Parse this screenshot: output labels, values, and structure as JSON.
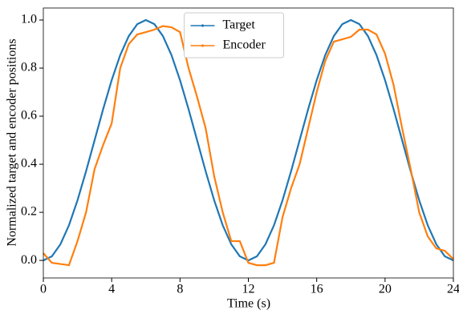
{
  "chart_data": {
    "type": "line",
    "xlabel": "Time (s)",
    "ylabel": "Normalized target and encoder positions",
    "x": [
      0,
      0.5,
      1,
      1.5,
      2,
      2.5,
      3,
      3.5,
      4,
      4.5,
      5,
      5.5,
      6,
      6.5,
      7,
      7.5,
      8,
      8.5,
      9,
      9.5,
      10,
      10.5,
      11,
      11.5,
      12,
      12.5,
      13,
      13.5,
      14,
      14.5,
      15,
      15.5,
      16,
      16.5,
      17,
      17.5,
      18,
      18.5,
      19,
      19.5,
      20,
      20.5,
      21,
      21.5,
      22,
      22.5,
      23,
      23.5,
      24
    ],
    "series": [
      {
        "name": "Target",
        "color": "#1f77b4",
        "values": [
          0,
          0.017,
          0.067,
          0.146,
          0.25,
          0.371,
          0.5,
          0.629,
          0.75,
          0.854,
          0.933,
          0.983,
          1.0,
          0.983,
          0.933,
          0.854,
          0.75,
          0.629,
          0.5,
          0.371,
          0.25,
          0.146,
          0.067,
          0.017,
          0,
          0.017,
          0.067,
          0.146,
          0.25,
          0.371,
          0.5,
          0.629,
          0.75,
          0.854,
          0.933,
          0.983,
          1.0,
          0.983,
          0.933,
          0.854,
          0.75,
          0.629,
          0.5,
          0.371,
          0.25,
          0.146,
          0.067,
          0.017,
          0
        ]
      },
      {
        "name": "Encoder",
        "color": "#ff7f0e",
        "values": [
          0.03,
          -0.01,
          -0.015,
          -0.02,
          0.08,
          0.2,
          0.38,
          0.48,
          0.57,
          0.8,
          0.9,
          0.94,
          0.95,
          0.96,
          0.975,
          0.97,
          0.95,
          0.8,
          0.68,
          0.55,
          0.35,
          0.2,
          0.08,
          0.08,
          -0.01,
          -0.02,
          -0.02,
          -0.01,
          0.18,
          0.3,
          0.4,
          0.55,
          0.7,
          0.83,
          0.91,
          0.92,
          0.93,
          0.96,
          0.96,
          0.94,
          0.86,
          0.73,
          0.55,
          0.38,
          0.2,
          0.1,
          0.05,
          0.04,
          0.005
        ]
      }
    ],
    "xlim": [
      0,
      24
    ],
    "xticks": [
      0,
      4,
      8,
      12,
      16,
      20,
      24
    ],
    "ylim": [
      -0.073,
      1.05
    ],
    "yticks": [
      {
        "value": 0,
        "label": "0.0"
      },
      0.2,
      0.4,
      0.6,
      0.8,
      {
        "value": 1,
        "label": "1.0"
      }
    ],
    "legend": "upper center"
  }
}
